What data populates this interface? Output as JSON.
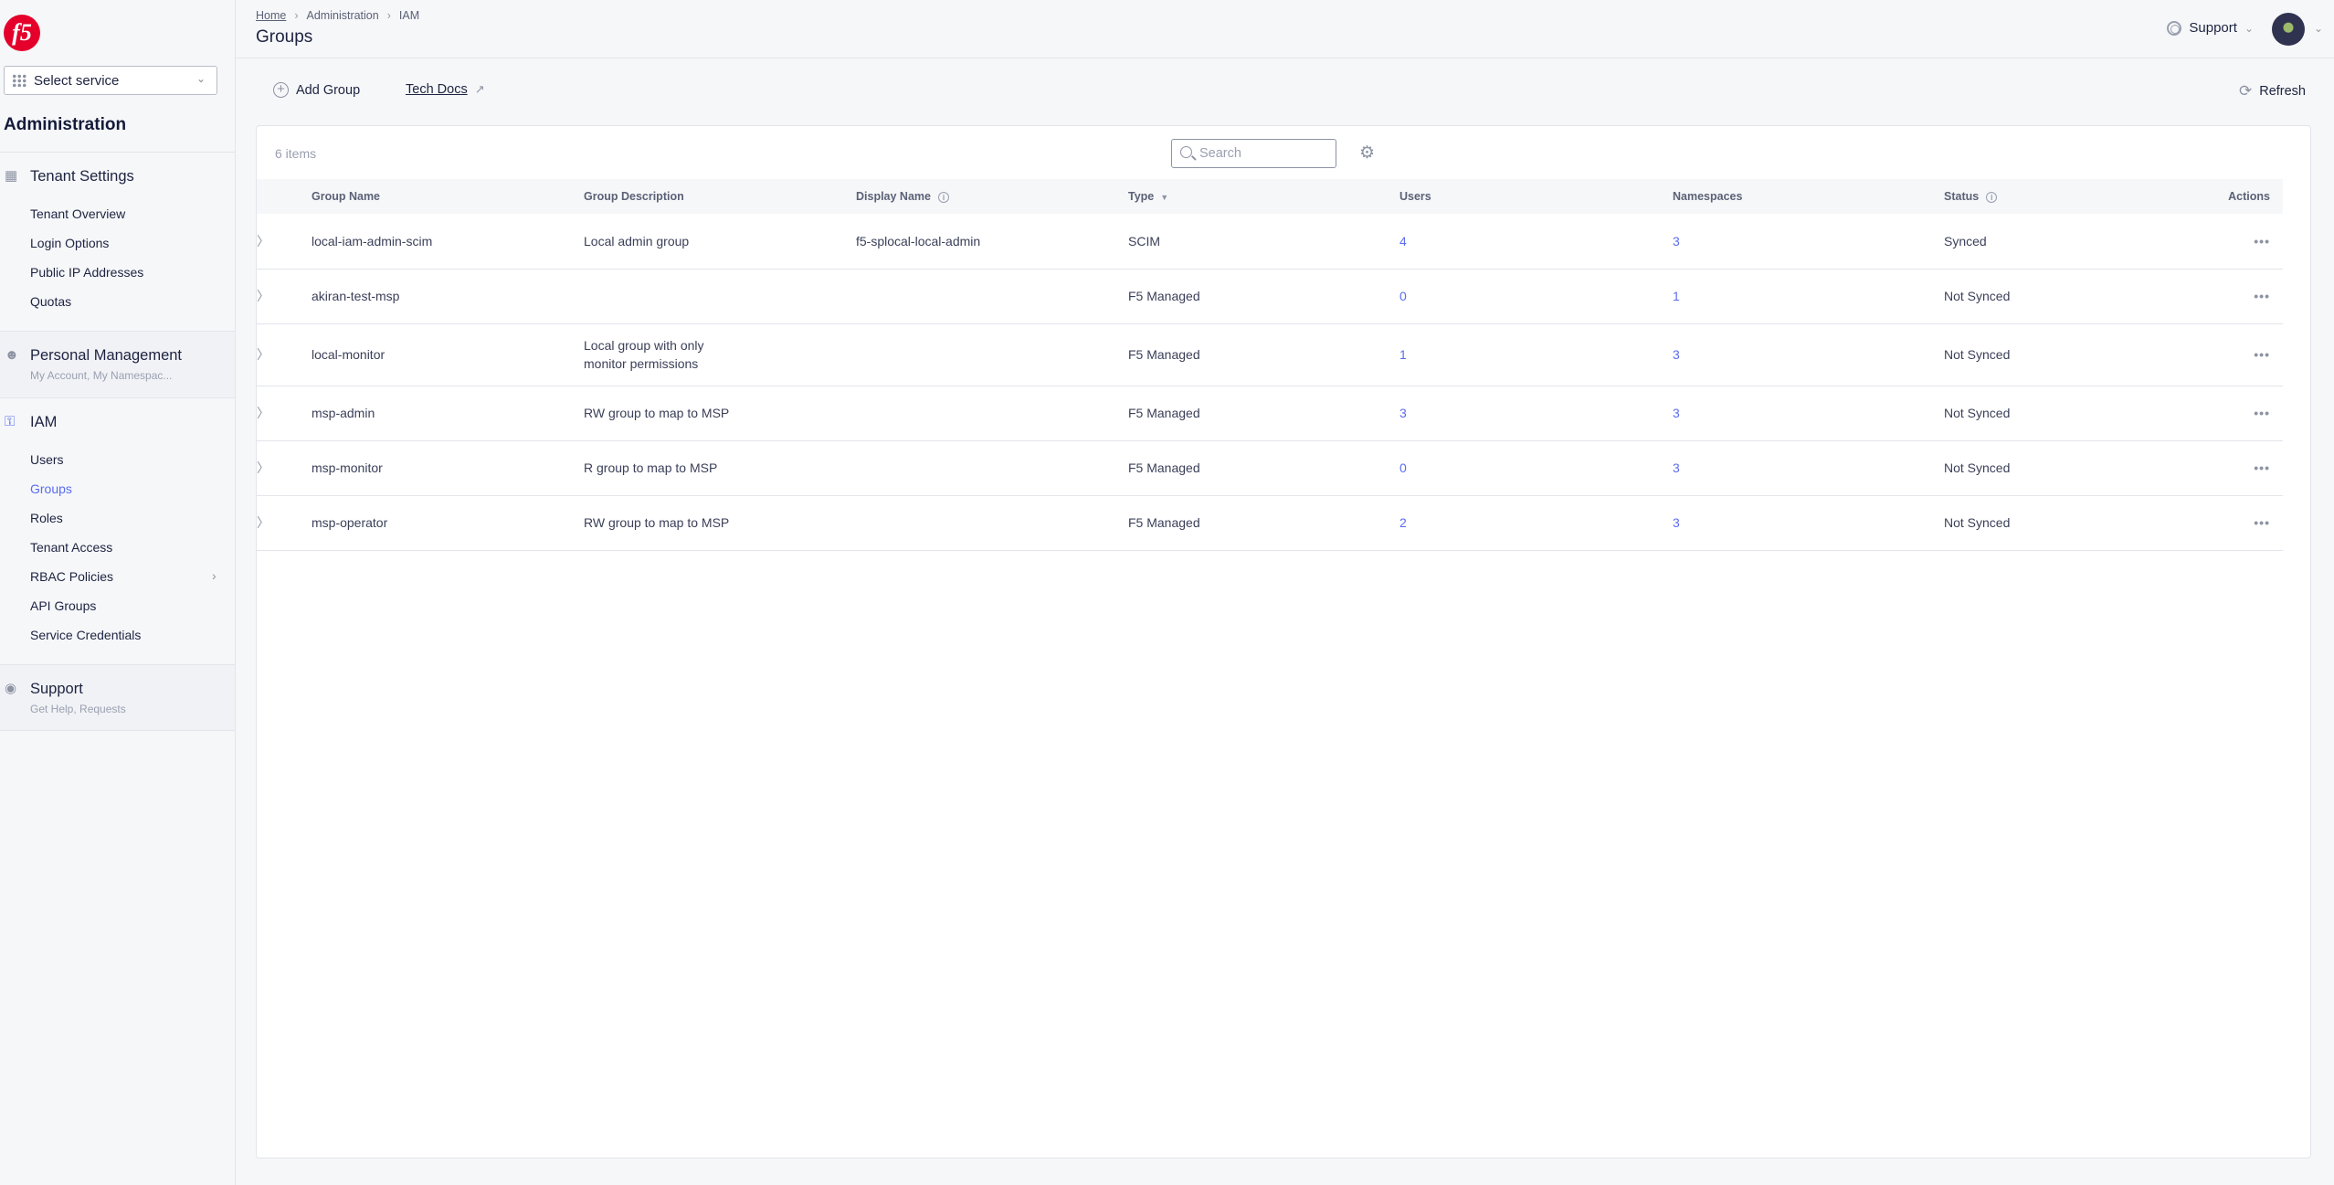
{
  "sidebar": {
    "logo": "f5",
    "select_service": "Select service",
    "section_title": "Administration",
    "tenant_settings": {
      "title": "Tenant Settings",
      "items": [
        "Tenant Overview",
        "Login Options",
        "Public IP Addresses",
        "Quotas"
      ]
    },
    "personal": {
      "title": "Personal Management",
      "subtitle": "My Account, My Namespac..."
    },
    "iam": {
      "title": "IAM",
      "items": [
        "Users",
        "Groups",
        "Roles",
        "Tenant Access",
        "RBAC Policies",
        "API Groups",
        "Service Credentials"
      ],
      "active": "Groups"
    },
    "support": {
      "title": "Support",
      "subtitle": "Get Help, Requests"
    }
  },
  "header": {
    "breadcrumb": [
      "Home",
      "Administration",
      "IAM"
    ],
    "title": "Groups",
    "support": "Support"
  },
  "toolbar": {
    "add_group": "Add Group",
    "tech_docs": "Tech Docs",
    "refresh": "Refresh"
  },
  "table": {
    "count": "6 items",
    "search_placeholder": "Search",
    "columns": [
      "Group Name",
      "Group Description",
      "Display Name",
      "Type",
      "Users",
      "Namespaces",
      "Status",
      "Actions"
    ],
    "rows": [
      {
        "name": "local-iam-admin-scim",
        "description": "Local admin group",
        "display": "f5-splocal-local-admin",
        "type": "SCIM",
        "users": "4",
        "namespaces": "3",
        "status": "Synced"
      },
      {
        "name": "akiran-test-msp",
        "description": "",
        "display": "",
        "type": "F5 Managed",
        "users": "0",
        "namespaces": "1",
        "status": "Not Synced"
      },
      {
        "name": "local-monitor",
        "description": "Local group with only monitor permissions",
        "display": "",
        "type": "F5 Managed",
        "users": "1",
        "namespaces": "3",
        "status": "Not Synced"
      },
      {
        "name": "msp-admin",
        "description": "RW group to map to MSP",
        "display": "",
        "type": "F5 Managed",
        "users": "3",
        "namespaces": "3",
        "status": "Not Synced"
      },
      {
        "name": "msp-monitor",
        "description": "R group to map to MSP",
        "display": "",
        "type": "F5 Managed",
        "users": "0",
        "namespaces": "3",
        "status": "Not Synced"
      },
      {
        "name": "msp-operator",
        "description": "RW group to map to MSP",
        "display": "",
        "type": "F5 Managed",
        "users": "2",
        "namespaces": "3",
        "status": "Not Synced"
      }
    ]
  },
  "colors": {
    "accent": "#5a6cf0",
    "brand": "#e4002b",
    "text": "#1d2340"
  }
}
